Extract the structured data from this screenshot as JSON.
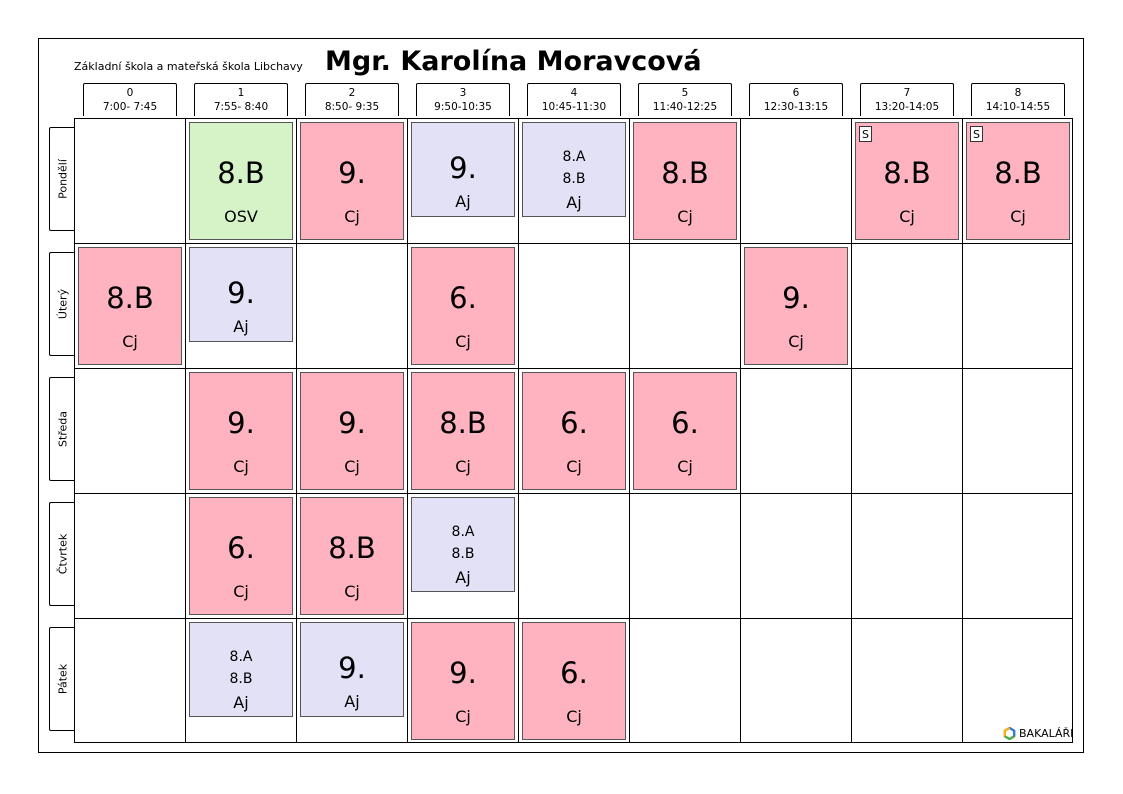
{
  "header": {
    "school": "Základní škola a mateřská škola Libchavy",
    "teacher": "Mgr. Karolína Moravcová"
  },
  "periods": [
    {
      "num": "0",
      "time": "7:00- 7:45"
    },
    {
      "num": "1",
      "time": "7:55- 8:40"
    },
    {
      "num": "2",
      "time": "8:50- 9:35"
    },
    {
      "num": "3",
      "time": "9:50-10:35"
    },
    {
      "num": "4",
      "time": "10:45-11:30"
    },
    {
      "num": "5",
      "time": "11:40-12:25"
    },
    {
      "num": "6",
      "time": "12:30-13:15"
    },
    {
      "num": "7",
      "time": "13:20-14:05"
    },
    {
      "num": "8",
      "time": "14:10-14:55"
    }
  ],
  "days": [
    "Pondělí",
    "Úterý",
    "Středa",
    "Čtvrtek",
    "Pátek"
  ],
  "lessons": [
    {
      "day": 0,
      "period": 1,
      "class": "8.B",
      "subject": "OSV",
      "color": "#d6f3c8",
      "style": "green"
    },
    {
      "day": 0,
      "period": 2,
      "class": "9.",
      "subject": "Cj",
      "style": "pink"
    },
    {
      "day": 0,
      "period": 3,
      "class": "9.",
      "subject": "Aj",
      "style": "lav",
      "short": true
    },
    {
      "day": 0,
      "period": 4,
      "classes": [
        "8.A",
        "8.B"
      ],
      "subject": "Aj",
      "style": "lav",
      "short": true
    },
    {
      "day": 0,
      "period": 5,
      "class": "8.B",
      "subject": "Cj",
      "style": "pink"
    },
    {
      "day": 0,
      "period": 7,
      "class": "8.B",
      "subject": "Cj",
      "style": "pink",
      "mark": "S"
    },
    {
      "day": 0,
      "period": 8,
      "class": "8.B",
      "subject": "Cj",
      "style": "pink",
      "mark": "S"
    },
    {
      "day": 1,
      "period": 0,
      "class": "8.B",
      "subject": "Cj",
      "style": "pink"
    },
    {
      "day": 1,
      "period": 1,
      "class": "9.",
      "subject": "Aj",
      "style": "lav",
      "short": true
    },
    {
      "day": 1,
      "period": 3,
      "class": "6.",
      "subject": "Cj",
      "style": "pink"
    },
    {
      "day": 1,
      "period": 6,
      "class": "9.",
      "subject": "Cj",
      "style": "pink"
    },
    {
      "day": 2,
      "period": 1,
      "class": "9.",
      "subject": "Cj",
      "style": "pink"
    },
    {
      "day": 2,
      "period": 2,
      "class": "9.",
      "subject": "Cj",
      "style": "pink"
    },
    {
      "day": 2,
      "period": 3,
      "class": "8.B",
      "subject": "Cj",
      "style": "pink"
    },
    {
      "day": 2,
      "period": 4,
      "class": "6.",
      "subject": "Cj",
      "style": "pink"
    },
    {
      "day": 2,
      "period": 5,
      "class": "6.",
      "subject": "Cj",
      "style": "pink"
    },
    {
      "day": 3,
      "period": 1,
      "class": "6.",
      "subject": "Cj",
      "style": "pink"
    },
    {
      "day": 3,
      "period": 2,
      "class": "8.B",
      "subject": "Cj",
      "style": "pink"
    },
    {
      "day": 3,
      "period": 3,
      "classes": [
        "8.A",
        "8.B"
      ],
      "subject": "Aj",
      "style": "lav",
      "short": true
    },
    {
      "day": 4,
      "period": 1,
      "classes": [
        "8.A",
        "8.B"
      ],
      "subject": "Aj",
      "style": "lav",
      "short": true
    },
    {
      "day": 4,
      "period": 2,
      "class": "9.",
      "subject": "Aj",
      "style": "lav",
      "short": true
    },
    {
      "day": 4,
      "period": 3,
      "class": "9.",
      "subject": "Cj",
      "style": "pink"
    },
    {
      "day": 4,
      "period": 4,
      "class": "6.",
      "subject": "Cj",
      "style": "pink"
    }
  ],
  "colors": {
    "pink": "#ffb3c1",
    "green": "#d6f3c8",
    "lavender": "#e3e1f6"
  },
  "logo": {
    "text": "BAKALÁŘI",
    "icon": "bakalari-logo-icon"
  }
}
